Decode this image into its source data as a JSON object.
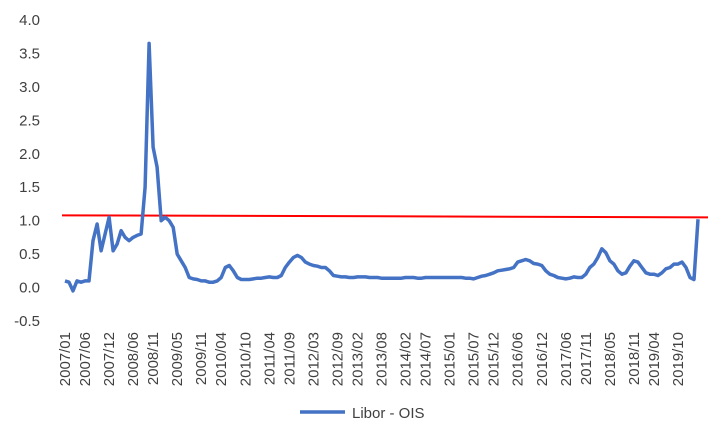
{
  "chart_data": {
    "type": "line",
    "title": "",
    "xlabel": "",
    "ylabel": "",
    "ylim": [
      -0.5,
      4.0
    ],
    "y_ticks": [
      "4.0",
      "3.5",
      "3.0",
      "2.5",
      "2.0",
      "1.5",
      "1.0",
      "0.5",
      "0.0",
      "-0.5"
    ],
    "y_tick_values": [
      4.0,
      3.5,
      3.0,
      2.5,
      2.0,
      1.5,
      1.0,
      0.5,
      0.0,
      -0.5
    ],
    "x_ticks": [
      "2007/01",
      "2007/06",
      "2007/12",
      "2008/06",
      "2008/11",
      "2009/05",
      "2009/11",
      "2010/04",
      "2010/10",
      "2011/04",
      "2011/09",
      "2012/03",
      "2012/09",
      "2013/02",
      "2013/08",
      "2014/02",
      "2014/07",
      "2015/01",
      "2015/07",
      "2015/12",
      "2016/06",
      "2016/12",
      "2017/06",
      "2017/11",
      "2018/05",
      "2018/11",
      "2019/04",
      "2019/10"
    ],
    "grid": false,
    "legend": "bottom",
    "threshold": {
      "value_start": 1.08,
      "value_end": 1.05,
      "color": "#ff0000"
    },
    "series": [
      {
        "name": "Libor - OIS",
        "color": "#4472c4",
        "points": [
          [
            "2007/01",
            0.1
          ],
          [
            "2007/02",
            0.08
          ],
          [
            "2007/03",
            -0.05
          ],
          [
            "2007/04",
            0.1
          ],
          [
            "2007/05",
            0.08
          ],
          [
            "2007/06",
            0.1
          ],
          [
            "2007/07",
            0.1
          ],
          [
            "2007/08",
            0.7
          ],
          [
            "2007/09",
            0.95
          ],
          [
            "2007/10",
            0.55
          ],
          [
            "2007/11",
            0.8
          ],
          [
            "2007/12",
            1.05
          ],
          [
            "2008/01",
            0.55
          ],
          [
            "2008/02",
            0.65
          ],
          [
            "2008/03",
            0.85
          ],
          [
            "2008/04",
            0.75
          ],
          [
            "2008/05",
            0.7
          ],
          [
            "2008/06",
            0.75
          ],
          [
            "2008/07",
            0.78
          ],
          [
            "2008/08",
            0.8
          ],
          [
            "2008/09",
            1.5
          ],
          [
            "2008/10",
            3.65
          ],
          [
            "2008/11",
            2.1
          ],
          [
            "2008/12",
            1.8
          ],
          [
            "2009/01",
            1.0
          ],
          [
            "2009/02",
            1.05
          ],
          [
            "2009/03",
            1.0
          ],
          [
            "2009/04",
            0.9
          ],
          [
            "2009/05",
            0.5
          ],
          [
            "2009/06",
            0.4
          ],
          [
            "2009/07",
            0.3
          ],
          [
            "2009/08",
            0.15
          ],
          [
            "2009/09",
            0.13
          ],
          [
            "2009/10",
            0.12
          ],
          [
            "2009/11",
            0.1
          ],
          [
            "2009/12",
            0.1
          ],
          [
            "2010/01",
            0.08
          ],
          [
            "2010/02",
            0.08
          ],
          [
            "2010/03",
            0.1
          ],
          [
            "2010/04",
            0.15
          ],
          [
            "2010/05",
            0.3
          ],
          [
            "2010/06",
            0.33
          ],
          [
            "2010/07",
            0.25
          ],
          [
            "2010/08",
            0.15
          ],
          [
            "2010/09",
            0.12
          ],
          [
            "2010/10",
            0.12
          ],
          [
            "2010/11",
            0.12
          ],
          [
            "2010/12",
            0.13
          ],
          [
            "2011/01",
            0.14
          ],
          [
            "2011/02",
            0.14
          ],
          [
            "2011/03",
            0.15
          ],
          [
            "2011/04",
            0.16
          ],
          [
            "2011/05",
            0.15
          ],
          [
            "2011/06",
            0.15
          ],
          [
            "2011/07",
            0.18
          ],
          [
            "2011/08",
            0.3
          ],
          [
            "2011/09",
            0.38
          ],
          [
            "2011/10",
            0.45
          ],
          [
            "2011/11",
            0.48
          ],
          [
            "2011/12",
            0.45
          ],
          [
            "2012/01",
            0.38
          ],
          [
            "2012/02",
            0.35
          ],
          [
            "2012/03",
            0.33
          ],
          [
            "2012/04",
            0.32
          ],
          [
            "2012/05",
            0.3
          ],
          [
            "2012/06",
            0.3
          ],
          [
            "2012/07",
            0.25
          ],
          [
            "2012/08",
            0.18
          ],
          [
            "2012/09",
            0.17
          ],
          [
            "2012/10",
            0.16
          ],
          [
            "2012/11",
            0.16
          ],
          [
            "2012/12",
            0.15
          ],
          [
            "2013/01",
            0.15
          ],
          [
            "2013/02",
            0.16
          ],
          [
            "2013/03",
            0.16
          ],
          [
            "2013/04",
            0.16
          ],
          [
            "2013/05",
            0.15
          ],
          [
            "2013/06",
            0.15
          ],
          [
            "2013/07",
            0.15
          ],
          [
            "2013/08",
            0.14
          ],
          [
            "2013/09",
            0.14
          ],
          [
            "2013/10",
            0.14
          ],
          [
            "2013/11",
            0.14
          ],
          [
            "2013/12",
            0.14
          ],
          [
            "2014/01",
            0.14
          ],
          [
            "2014/02",
            0.15
          ],
          [
            "2014/03",
            0.15
          ],
          [
            "2014/04",
            0.15
          ],
          [
            "2014/05",
            0.14
          ],
          [
            "2014/06",
            0.14
          ],
          [
            "2014/07",
            0.15
          ],
          [
            "2014/08",
            0.15
          ],
          [
            "2014/09",
            0.15
          ],
          [
            "2014/10",
            0.15
          ],
          [
            "2014/11",
            0.15
          ],
          [
            "2014/12",
            0.15
          ],
          [
            "2015/01",
            0.15
          ],
          [
            "2015/02",
            0.15
          ],
          [
            "2015/03",
            0.15
          ],
          [
            "2015/04",
            0.15
          ],
          [
            "2015/05",
            0.14
          ],
          [
            "2015/06",
            0.14
          ],
          [
            "2015/07",
            0.13
          ],
          [
            "2015/08",
            0.15
          ],
          [
            "2015/09",
            0.17
          ],
          [
            "2015/10",
            0.18
          ],
          [
            "2015/11",
            0.2
          ],
          [
            "2015/12",
            0.22
          ],
          [
            "2016/01",
            0.25
          ],
          [
            "2016/02",
            0.26
          ],
          [
            "2016/03",
            0.27
          ],
          [
            "2016/04",
            0.28
          ],
          [
            "2016/05",
            0.3
          ],
          [
            "2016/06",
            0.38
          ],
          [
            "2016/07",
            0.4
          ],
          [
            "2016/08",
            0.42
          ],
          [
            "2016/09",
            0.4
          ],
          [
            "2016/10",
            0.36
          ],
          [
            "2016/11",
            0.35
          ],
          [
            "2016/12",
            0.33
          ],
          [
            "2017/01",
            0.25
          ],
          [
            "2017/02",
            0.2
          ],
          [
            "2017/03",
            0.18
          ],
          [
            "2017/04",
            0.15
          ],
          [
            "2017/05",
            0.14
          ],
          [
            "2017/06",
            0.13
          ],
          [
            "2017/07",
            0.14
          ],
          [
            "2017/08",
            0.16
          ],
          [
            "2017/09",
            0.15
          ],
          [
            "2017/10",
            0.15
          ],
          [
            "2017/11",
            0.2
          ],
          [
            "2017/12",
            0.3
          ],
          [
            "2018/01",
            0.35
          ],
          [
            "2018/02",
            0.45
          ],
          [
            "2018/03",
            0.58
          ],
          [
            "2018/04",
            0.52
          ],
          [
            "2018/05",
            0.4
          ],
          [
            "2018/06",
            0.35
          ],
          [
            "2018/07",
            0.25
          ],
          [
            "2018/08",
            0.2
          ],
          [
            "2018/09",
            0.22
          ],
          [
            "2018/10",
            0.32
          ],
          [
            "2018/11",
            0.4
          ],
          [
            "2018/12",
            0.38
          ],
          [
            "2019/01",
            0.3
          ],
          [
            "2019/02",
            0.22
          ],
          [
            "2019/03",
            0.2
          ],
          [
            "2019/04",
            0.2
          ],
          [
            "2019/05",
            0.18
          ],
          [
            "2019/06",
            0.22
          ],
          [
            "2019/07",
            0.28
          ],
          [
            "2019/08",
            0.3
          ],
          [
            "2019/09",
            0.35
          ],
          [
            "2019/10",
            0.35
          ],
          [
            "2019/11",
            0.38
          ],
          [
            "2019/12",
            0.3
          ],
          [
            "2020/01",
            0.15
          ],
          [
            "2020/02",
            0.12
          ],
          [
            "2020/03",
            1.02
          ]
        ]
      }
    ]
  }
}
